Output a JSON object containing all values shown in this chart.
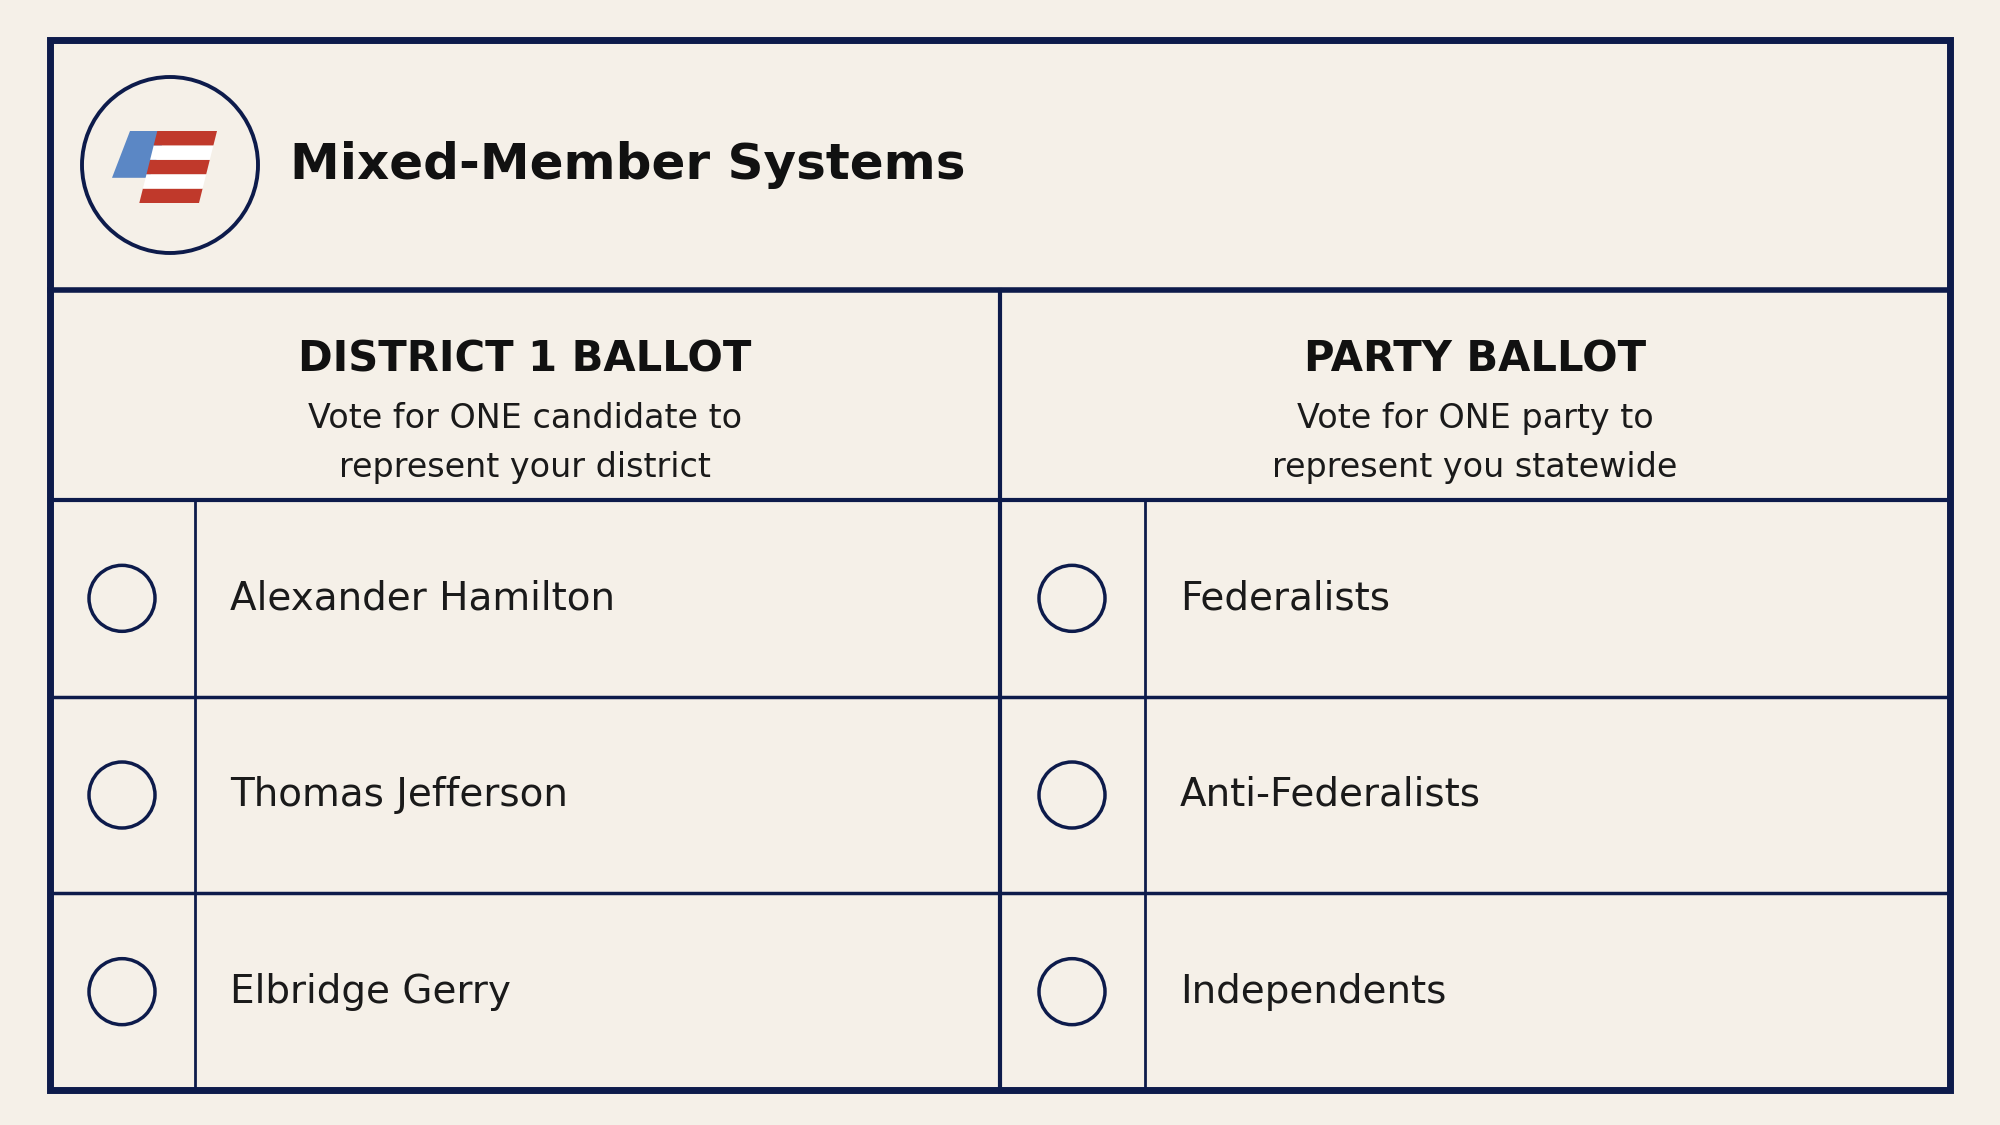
{
  "bg_color": "#F5F0E8",
  "border_color": "#0D1B4B",
  "title": "Mixed-Member Systems",
  "title_fontsize": 36,
  "title_fontweight": "bold",
  "left_header": "DISTRICT 1 BALLOT",
  "left_subheader": "Vote for ONE candidate to\nrepresent your district",
  "right_header": "PARTY BALLOT",
  "right_subheader": "Vote for ONE party to\nrepresent you statewide",
  "left_candidates": [
    "Alexander Hamilton",
    "Thomas Jefferson",
    "Elbridge Gerry"
  ],
  "right_candidates": [
    "Federalists",
    "Anti-Federalists",
    "Independents"
  ],
  "circle_color": "#0D1B4B",
  "text_color": "#1a1a1a",
  "header_color": "#111111",
  "divider_color": "#0D1B4B",
  "candidate_fontsize": 28,
  "header_fontsize": 30,
  "subheader_fontsize": 24,
  "blue_logo": "#5B87C5",
  "red_logo": "#C0392B",
  "white_logo": "#FFFFFF"
}
